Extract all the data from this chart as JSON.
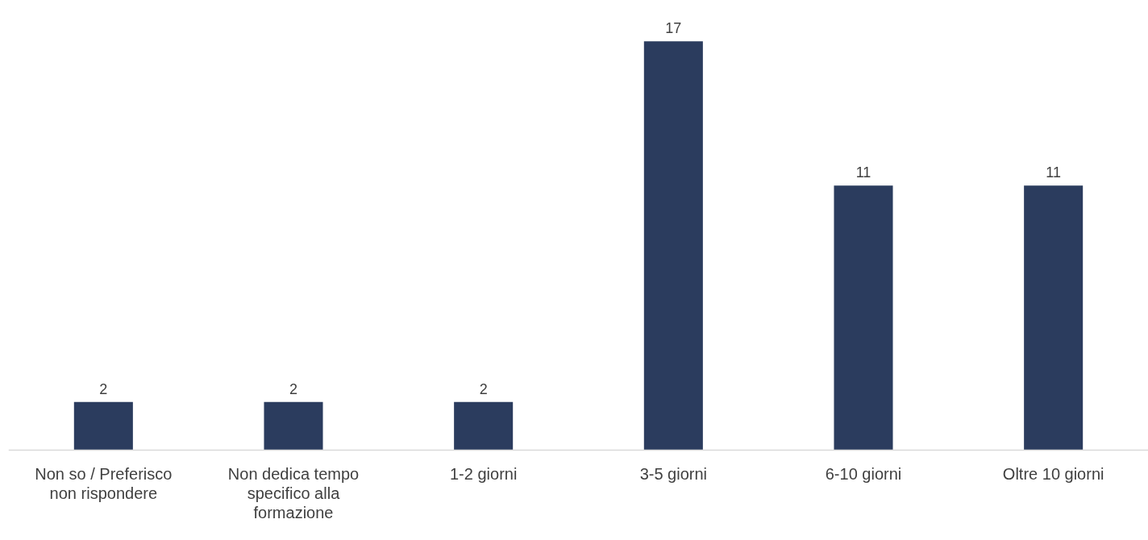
{
  "chart_data": {
    "type": "bar",
    "categories": [
      "Non so / Preferisco non rispondere",
      "Non dedica tempo specifico alla formazione",
      "1-2 giorni",
      "3-5 giorni",
      "6-10 giorni",
      "Oltre 10 giorni"
    ],
    "values": [
      2,
      2,
      2,
      17,
      11,
      11
    ],
    "color": "#2b3c5e",
    "data_labels": true
  }
}
